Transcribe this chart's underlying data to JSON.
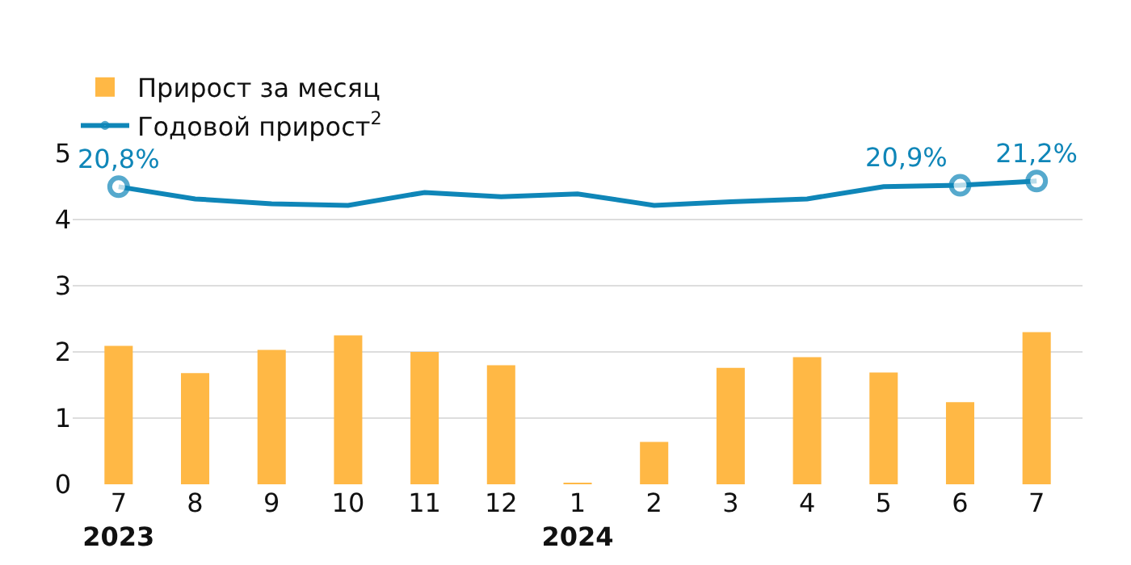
{
  "chart_data": {
    "type": "bar",
    "categories": [
      "7\n2023",
      "8",
      "9",
      "10",
      "11",
      "12",
      "1\n2024",
      "2",
      "3",
      "4",
      "5",
      "6",
      "7"
    ],
    "series": [
      {
        "name": "Прирост за месяц",
        "color": "#ffb845",
        "values": [
          2.09,
          1.68,
          2.03,
          2.25,
          2.0,
          1.8,
          0.01,
          0.64,
          1.76,
          1.92,
          1.69,
          1.24,
          2.3
        ]
      },
      {
        "name": "Годовой прирост$^{2}$",
        "type": "line",
        "axis": "y2",
        "color": "#0f86b8",
        "values": [
          20.8,
          19.95,
          19.6,
          19.5,
          20.4,
          20.1,
          20.3,
          19.5,
          19.75,
          19.95,
          20.8,
          20.9,
          21.2
        ],
        "value_labels": [
          "20,8%",
          null,
          null,
          null,
          null,
          null,
          null,
          null,
          null,
          null,
          null,
          "20,9%",
          "21,2%"
        ]
      }
    ],
    "ylim": [
      0,
      5
    ],
    "yticks": [
      0,
      1,
      2,
      3,
      4,
      5
    ],
    "grid": "y",
    "legend": "top left"
  }
}
